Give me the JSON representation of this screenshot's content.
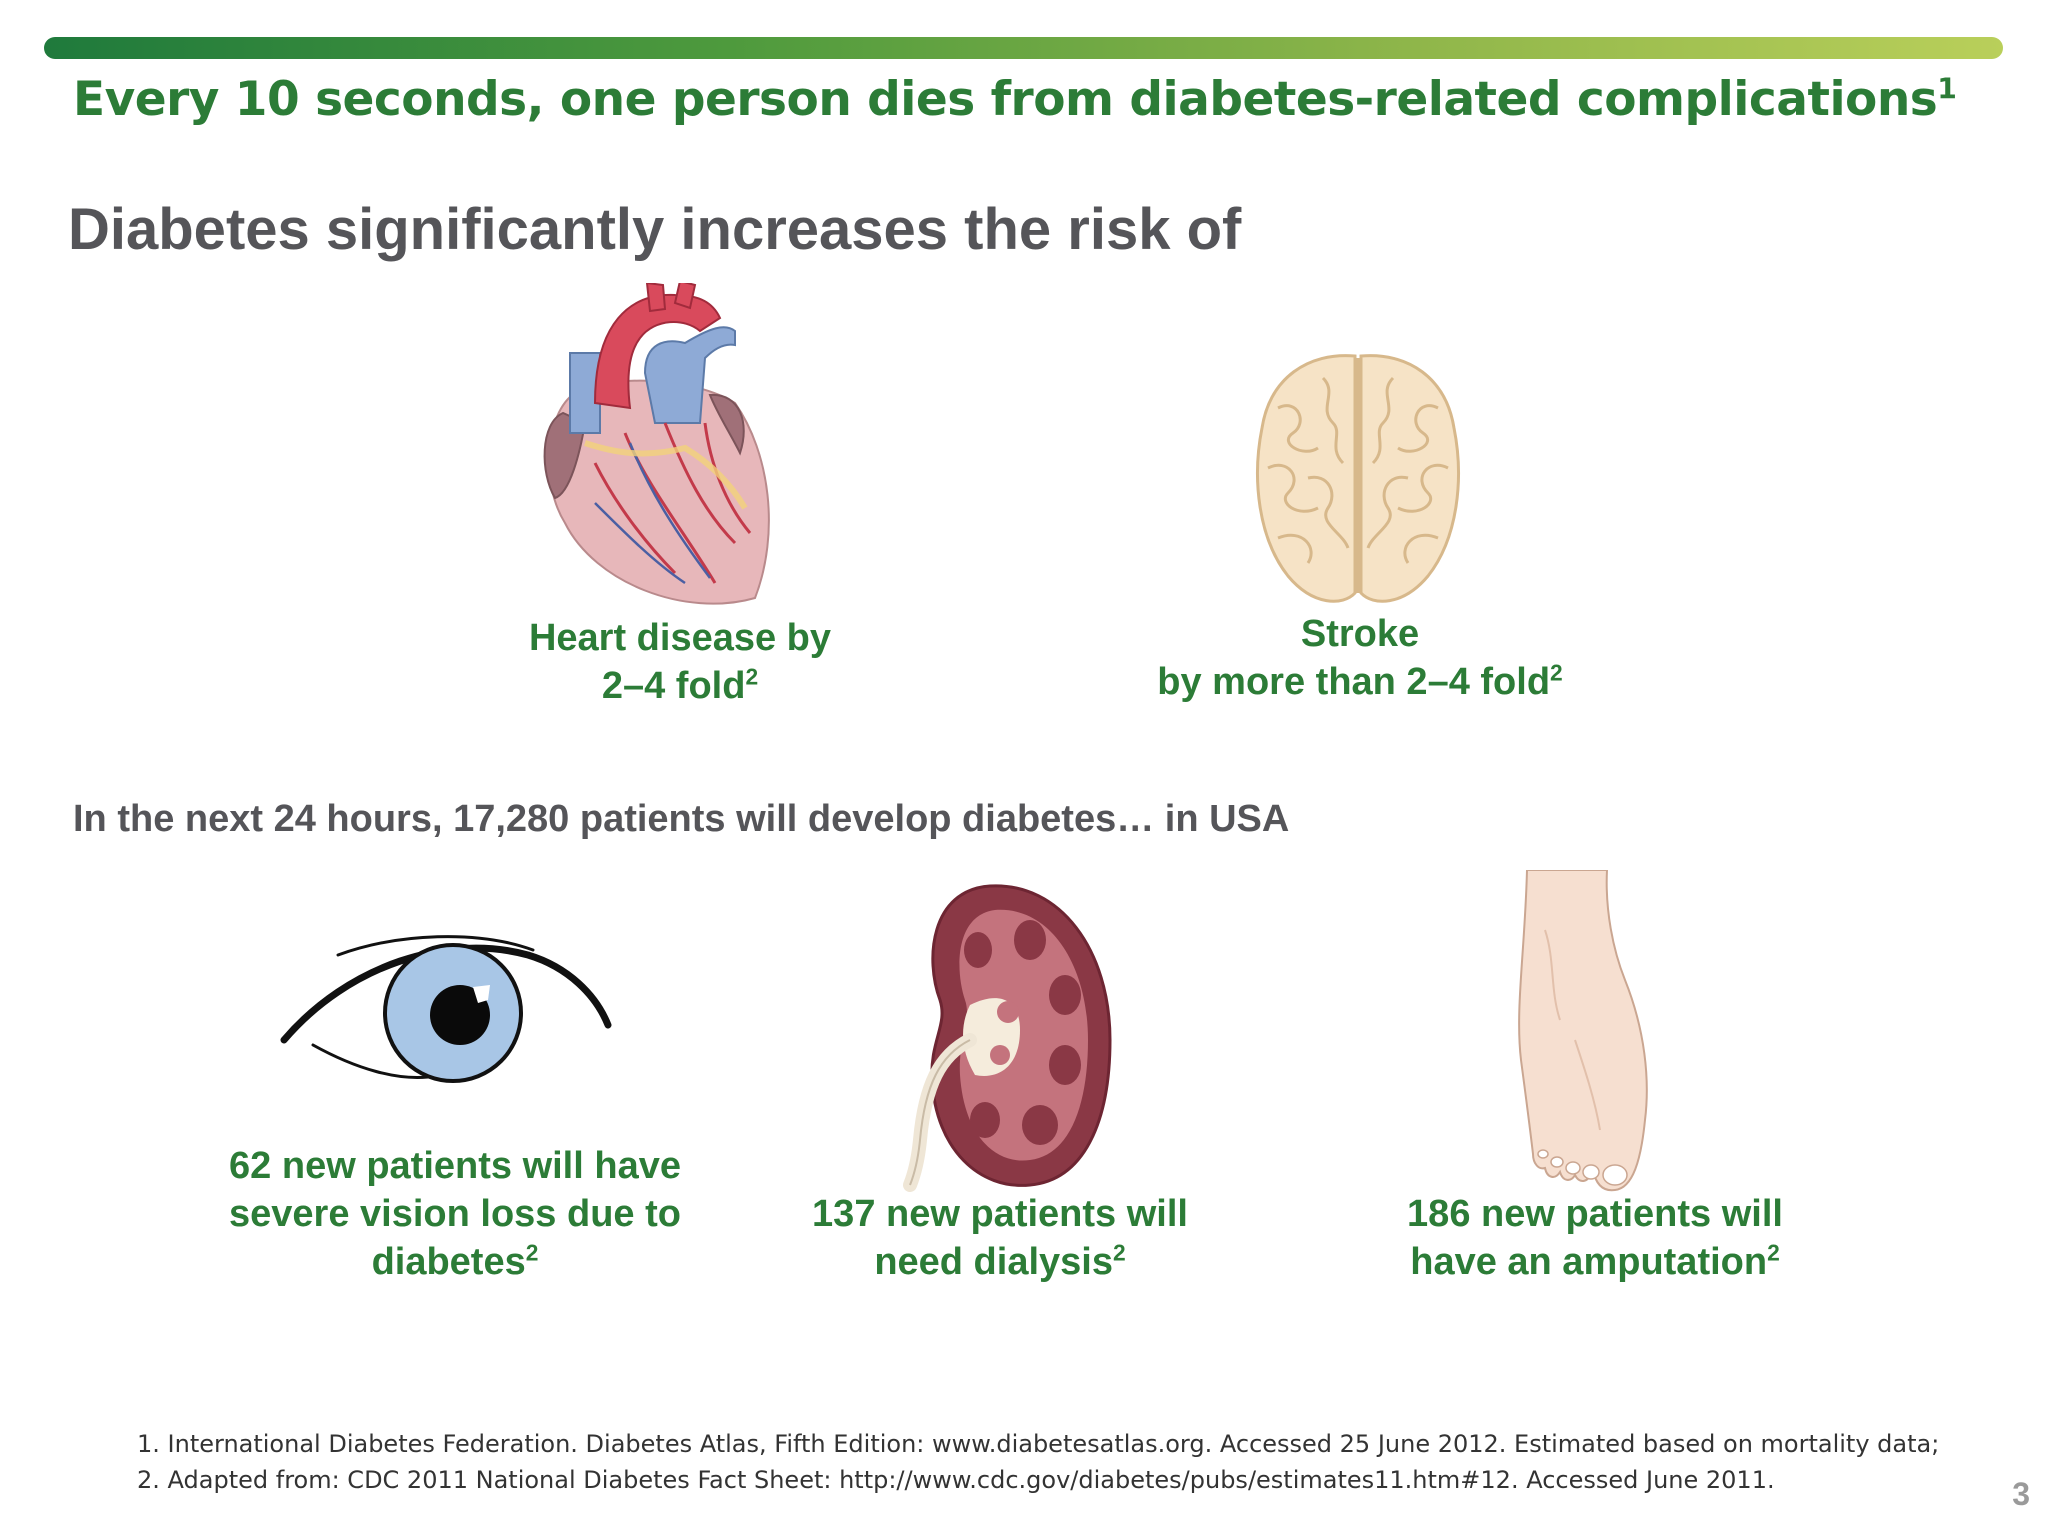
{
  "header": {
    "headline": "Every 10 seconds, one person dies from diabetes-related complications",
    "headline_ref": "1",
    "subhead": "Diabetes significantly increases the risk of"
  },
  "risks": [
    {
      "icon": "heart-illustration",
      "line1": "Heart disease by",
      "line2": "2–4 fold",
      "ref": "2"
    },
    {
      "icon": "brain-illustration",
      "line1": "Stroke",
      "line2": "by more than 2–4 fold",
      "ref": "2"
    }
  ],
  "midline": "In the next 24 hours, 17,280 patients will develop diabetes… in USA",
  "outcomes": [
    {
      "icon": "eye-illustration",
      "line1": "62 new patients will have",
      "line2": "severe vision loss due to",
      "line3": "diabetes",
      "ref": "2"
    },
    {
      "icon": "kidney-illustration",
      "line1": "137 new patients will",
      "line2": "need dialysis",
      "ref": "2"
    },
    {
      "icon": "foot-illustration",
      "line1": "186 new patients will",
      "line2": "have an amputation",
      "ref": "2"
    }
  ],
  "references": [
    "1. International Diabetes Federation. Diabetes Atlas, Fifth Edition: www.diabetesatlas.org. Accessed 25 June 2012. Estimated based on mortality data;",
    "2. Adapted from: CDC 2011 National Diabetes Fact Sheet: http://www.cdc.gov/diabetes/pubs/estimates11.htm#12. Accessed June 2011."
  ],
  "page_number": "3",
  "colors": {
    "accent_green": "#2c7c37",
    "heading_gray": "#555559"
  }
}
